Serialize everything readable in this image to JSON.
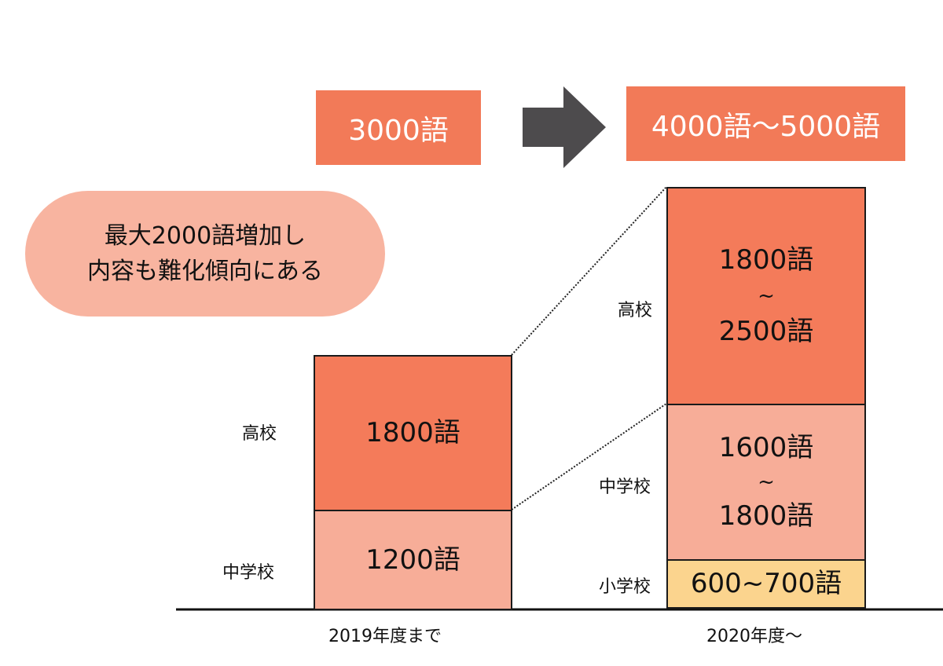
{
  "header": {
    "before_total": "3000語",
    "after_total": "4000語〜5000語",
    "arrow_icon": "right-arrow-icon"
  },
  "callout": {
    "line1": "最大2000語増加し",
    "line2": "内容も難化傾向にある"
  },
  "before": {
    "period_label": "2019年度まで",
    "high_school": {
      "label": "高校",
      "value": "1800語"
    },
    "junior_high": {
      "label": "中学校",
      "value": "1200語"
    }
  },
  "after": {
    "period_label": "2020年度〜",
    "high_school": {
      "label": "高校",
      "value_min": "1800語",
      "sep": "~",
      "value_max": "2500語"
    },
    "junior_high": {
      "label": "中学校",
      "value_min": "1600語",
      "sep": "~",
      "value_max": "1800語"
    },
    "elementary": {
      "label": "小学校",
      "value": "600~700語"
    }
  },
  "colors": {
    "header": "#f27a58",
    "high_school": "#f47b5a",
    "junior_high": "#f7ad98",
    "elementary": "#fbd48e",
    "callout": "#f8b4a0",
    "arrow": "#4d4b4d"
  }
}
